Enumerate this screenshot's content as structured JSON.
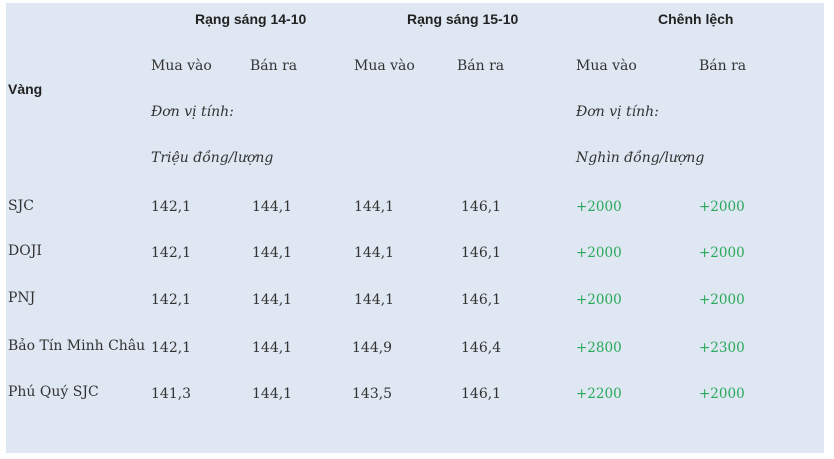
{
  "header": {
    "col_day1": "Rạng sáng 14-10",
    "col_day2": "Rạng sáng 15-10",
    "col_diff": "Chênh lệch",
    "row_label": "Vàng"
  },
  "subheader": {
    "buy": "Mua vào",
    "sell": "Bán ra"
  },
  "units": {
    "label": "Đơn vị tính:",
    "price_unit": "Triệu đồng/lượng",
    "diff_unit": "Nghìn đồng/lượng"
  },
  "rows": [
    {
      "name": "SJC",
      "buy_1": "142,1",
      "sell_1": "144,1",
      "buy_2": "144,1",
      "sell_2": "146,1",
      "diff_buy": "+2000",
      "diff_sell": "+2000"
    },
    {
      "name": "DOJI",
      "buy_1": "142,1",
      "sell_1": "144,1",
      "buy_2": "144,1",
      "sell_2": "146,1",
      "diff_buy": "+2000",
      "diff_sell": "+2000"
    },
    {
      "name": "PNJ",
      "buy_1": "142,1",
      "sell_1": "144,1",
      "buy_2": "144,1",
      "sell_2": "146,1",
      "diff_buy": "+2000",
      "diff_sell": "+2000"
    },
    {
      "name": "Bảo Tín Minh Châu",
      "buy_1": "142,1",
      "sell_1": "144,1",
      "buy_2": "144,9",
      "sell_2": "146,4",
      "diff_buy": "+2800",
      "diff_sell": "+2300"
    },
    {
      "name": "Phú Quý SJC",
      "buy_1": "141,3",
      "sell_1": "144,1",
      "buy_2": "143,5",
      "sell_2": "146,1",
      "diff_buy": "+2200",
      "diff_sell": "+2000"
    }
  ],
  "colors": {
    "background": "#dfe7f2",
    "text": "#333333",
    "positive": "#27a85a"
  }
}
